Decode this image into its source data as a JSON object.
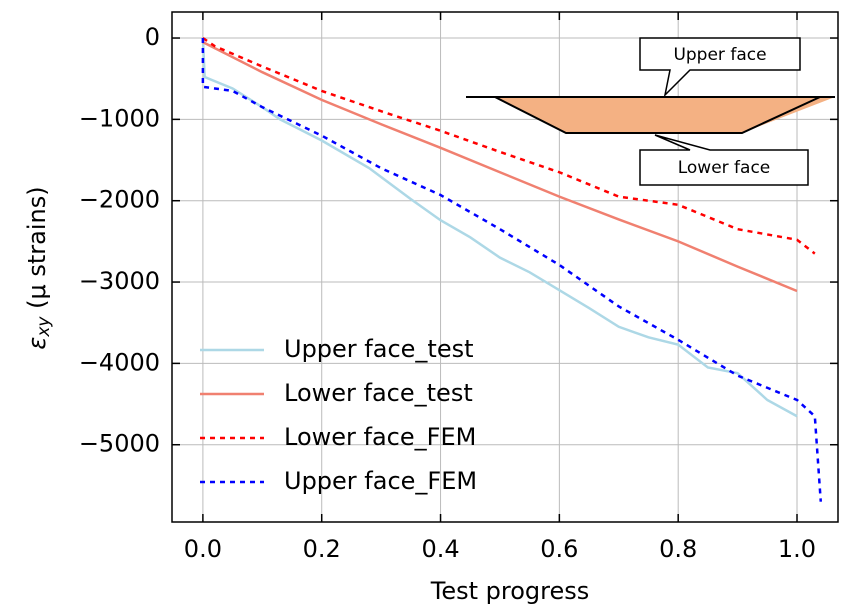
{
  "chart_data": {
    "type": "line",
    "xlabel": "Test progress",
    "ylabel": [
      "ε",
      "xy",
      " (μ strains)"
    ],
    "xlim": [
      -0.052,
      1.069
    ],
    "ylim": [
      -5950,
      320
    ],
    "xticks": [
      {
        "value": 0,
        "label": "0.0"
      },
      0.2,
      0.4,
      0.6,
      0.8,
      {
        "value": 1,
        "label": "1.0"
      }
    ],
    "yticks": [
      0,
      {
        "value": -1000,
        "label": "−1000"
      },
      {
        "value": -2000,
        "label": "−2000"
      },
      {
        "value": -3000,
        "label": "−3000"
      },
      {
        "value": -4000,
        "label": "−4000"
      },
      {
        "value": -5000,
        "label": "−5000"
      }
    ],
    "grid": true,
    "legend": "lower left",
    "annotations": [
      "Upper face",
      "Lower face"
    ],
    "series": [
      {
        "name": "Upper face_test",
        "color": "#add8e6",
        "dash": false,
        "x": [
          0,
          0.003,
          0.05,
          0.1,
          0.13,
          0.2,
          0.28,
          0.35,
          0.4,
          0.45,
          0.5,
          0.55,
          0.6,
          0.65,
          0.7,
          0.75,
          0.8,
          0.85,
          0.9,
          0.95,
          1.0
        ],
        "values": [
          0,
          -480,
          -620,
          -850,
          -1000,
          -1260,
          -1600,
          -1980,
          -2240,
          -2450,
          -2700,
          -2880,
          -3100,
          -3320,
          -3550,
          -3680,
          -3770,
          -4050,
          -4120,
          -4450,
          -4650
        ]
      },
      {
        "name": "Lower face_test",
        "color": "#f08070",
        "dash": false,
        "x": [
          0,
          0.1,
          0.2,
          0.3,
          0.4,
          0.5,
          0.6,
          0.7,
          0.8,
          0.9,
          1.0
        ],
        "values": [
          -50,
          -420,
          -760,
          -1060,
          -1350,
          -1650,
          -1950,
          -2230,
          -2500,
          -2810,
          -3110
        ]
      },
      {
        "name": "Lower face_FEM",
        "color": "#ff0000",
        "dash": true,
        "x": [
          0,
          0.02,
          0.1,
          0.2,
          0.3,
          0.4,
          0.5,
          0.6,
          0.7,
          0.8,
          0.9,
          1.0,
          1.03
        ],
        "values": [
          0,
          -100,
          -350,
          -650,
          -900,
          -1140,
          -1400,
          -1650,
          -1950,
          -2050,
          -2350,
          -2480,
          -2650
        ]
      },
      {
        "name": "Upper face_FEM",
        "color": "#0000ff",
        "dash": true,
        "x": [
          0,
          0,
          0.02,
          0.05,
          0.1,
          0.2,
          0.3,
          0.4,
          0.5,
          0.6,
          0.7,
          0.8,
          0.9,
          1.0,
          1.03,
          1.04
        ],
        "values": [
          0,
          -600,
          -620,
          -650,
          -850,
          -1200,
          -1600,
          -1930,
          -2350,
          -2790,
          -3300,
          -3710,
          -4150,
          -4450,
          -4650,
          -5700
        ]
      }
    ]
  }
}
